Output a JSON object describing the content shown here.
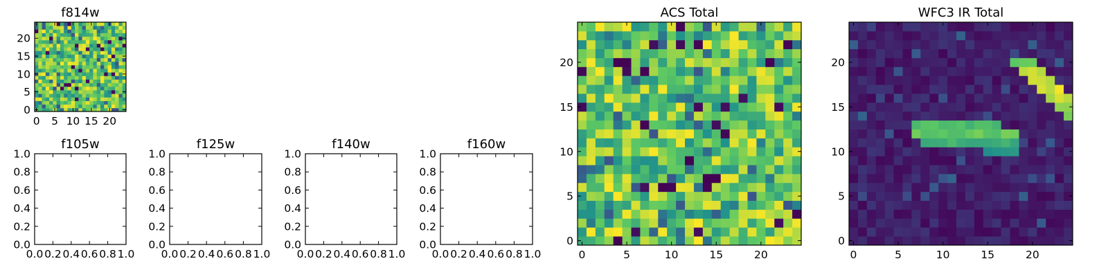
{
  "figure": {
    "background": "#ffffff",
    "colormap": "viridis",
    "colormap_stops": [
      "#440154",
      "#3b528b",
      "#21918c",
      "#5ec962",
      "#fde725"
    ]
  },
  "chart_data": [
    {
      "id": "f814w",
      "type": "heatmap",
      "title": "f814w",
      "xlabel": "",
      "ylabel": "",
      "grid_shape": [
        25,
        25
      ],
      "xlim": [
        -0.5,
        24.5
      ],
      "ylim": [
        -0.5,
        24.5
      ],
      "xticks": [
        0,
        5,
        10,
        15,
        20
      ],
      "yticks": [
        0,
        5,
        10,
        15,
        20
      ],
      "xtick_labels": [
        "0",
        "5",
        "10",
        "15",
        "20"
      ],
      "ytick_labels": [
        "0",
        "5",
        "10",
        "15",
        "20"
      ],
      "value_range": [
        0,
        1
      ],
      "pattern": "uniform random noise, mostly green/yellow with a few dark pixels",
      "grid": false
    },
    {
      "id": "f105w",
      "type": "empty",
      "title": "f105w",
      "xlim": [
        0,
        1
      ],
      "ylim": [
        0,
        1
      ],
      "xticks": [
        0,
        0.2,
        0.4,
        0.6,
        0.8,
        1.0
      ],
      "yticks": [
        0,
        0.2,
        0.4,
        0.6,
        0.8,
        1.0
      ],
      "xtick_labels": [
        "0.0",
        "0.2",
        "0.4",
        "0.6",
        "0.8",
        "1.0"
      ],
      "ytick_labels": [
        "0.0",
        "0.2",
        "0.4",
        "0.6",
        "0.8",
        "1.0"
      ],
      "grid": false
    },
    {
      "id": "f125w",
      "type": "empty",
      "title": "f125w",
      "xlim": [
        0,
        1
      ],
      "ylim": [
        0,
        1
      ],
      "xticks": [
        0,
        0.2,
        0.4,
        0.6,
        0.8,
        1.0
      ],
      "yticks": [
        0,
        0.2,
        0.4,
        0.6,
        0.8,
        1.0
      ],
      "xtick_labels": [
        "0.0",
        "0.2",
        "0.4",
        "0.6",
        "0.8",
        "1.0"
      ],
      "ytick_labels": [
        "0.0",
        "0.2",
        "0.4",
        "0.6",
        "0.8",
        "1.0"
      ],
      "grid": false
    },
    {
      "id": "f140w",
      "type": "empty",
      "title": "f140w",
      "xlim": [
        0,
        1
      ],
      "ylim": [
        0,
        1
      ],
      "xticks": [
        0,
        0.2,
        0.4,
        0.6,
        0.8,
        1.0
      ],
      "yticks": [
        0,
        0.2,
        0.4,
        0.6,
        0.8,
        1.0
      ],
      "xtick_labels": [
        "0.0",
        "0.2",
        "0.4",
        "0.6",
        "0.8",
        "1.0"
      ],
      "ytick_labels": [
        "0.0",
        "0.2",
        "0.4",
        "0.6",
        "0.8",
        "1.0"
      ],
      "grid": false
    },
    {
      "id": "f160w",
      "type": "empty",
      "title": "f160w",
      "xlim": [
        0,
        1
      ],
      "ylim": [
        0,
        1
      ],
      "xticks": [
        0,
        0.2,
        0.4,
        0.6,
        0.8,
        1.0
      ],
      "yticks": [
        0,
        0.2,
        0.4,
        0.6,
        0.8,
        1.0
      ],
      "xtick_labels": [
        "0.0",
        "0.2",
        "0.4",
        "0.6",
        "0.8",
        "1.0"
      ],
      "ytick_labels": [
        "0.0",
        "0.2",
        "0.4",
        "0.6",
        "0.8",
        "1.0"
      ],
      "grid": false
    },
    {
      "id": "acs-total",
      "type": "heatmap",
      "title": "ACS Total",
      "xlabel": "",
      "ylabel": "",
      "grid_shape": [
        25,
        25
      ],
      "xlim": [
        -0.5,
        24.5
      ],
      "ylim": [
        -0.5,
        24.5
      ],
      "xticks": [
        0,
        5,
        10,
        15,
        20
      ],
      "yticks": [
        0,
        5,
        10,
        15,
        20
      ],
      "xtick_labels": [
        "0",
        "5",
        "10",
        "15",
        "20"
      ],
      "ytick_labels": [
        "0",
        "5",
        "10",
        "15",
        "20"
      ],
      "value_range": [
        0,
        1
      ],
      "pattern": "uniform random noise, mostly green/yellow with a few dark pixels",
      "grid": false
    },
    {
      "id": "wfc3-ir-total",
      "type": "heatmap",
      "title": "WFC3 IR Total",
      "xlabel": "",
      "ylabel": "",
      "grid_shape": [
        25,
        25
      ],
      "xlim": [
        -0.5,
        24.5
      ],
      "ylim": [
        -0.5,
        24.5
      ],
      "xticks": [
        0,
        5,
        10,
        15,
        20
      ],
      "yticks": [
        0,
        5,
        10,
        15,
        20
      ],
      "xtick_labels": [
        "0",
        "5",
        "10",
        "15",
        "20"
      ],
      "ytick_labels": [
        "0",
        "5",
        "10",
        "15",
        "20"
      ],
      "value_range": [
        0,
        1
      ],
      "pattern": "dark low-level noise background with a bright band",
      "bright_features": [
        {
          "row": 13,
          "col_start": 7,
          "col_end": 16,
          "level": 0.75
        },
        {
          "row": 12,
          "col_start": 7,
          "col_end": 18,
          "level": 0.8
        },
        {
          "row": 11,
          "col_start": 8,
          "col_end": 18,
          "level": 0.7
        },
        {
          "row": 10,
          "col_start": 15,
          "col_end": 18,
          "level": 0.55
        },
        {
          "row": 20,
          "col_start": 18,
          "col_end": 20,
          "level": 0.85
        },
        {
          "row": 19,
          "col_start": 19,
          "col_end": 21,
          "level": 0.95
        },
        {
          "row": 18,
          "col_start": 20,
          "col_end": 22,
          "level": 1.0
        },
        {
          "row": 17,
          "col_start": 21,
          "col_end": 23,
          "level": 1.0
        },
        {
          "row": 16,
          "col_start": 22,
          "col_end": 24,
          "level": 0.95
        },
        {
          "row": 15,
          "col_start": 23,
          "col_end": 24,
          "level": 0.9
        },
        {
          "row": 14,
          "col_start": 24,
          "col_end": 24,
          "level": 0.85
        }
      ],
      "grid": false
    }
  ]
}
